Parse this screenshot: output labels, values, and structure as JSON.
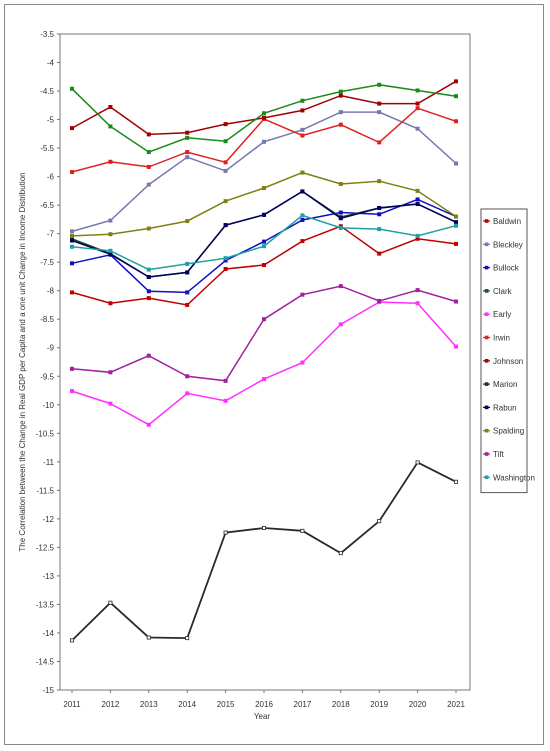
{
  "chart_data": {
    "type": "line",
    "title": "",
    "xlabel": "Year",
    "ylabel": "The Correlation between the Change in Real GDP per Capita and a one unit Change in Income Distribution",
    "ylim": [
      -15,
      -3.5
    ],
    "y_ticks": [
      -3.5,
      -4,
      -4.5,
      -5,
      -5.5,
      -6,
      -6.5,
      -7,
      -7.5,
      -8,
      -8.5,
      -9,
      -9.5,
      -10,
      -10.5,
      -11,
      -11.5,
      -12,
      -12.5,
      -13,
      -13.5,
      -14,
      -14.5,
      -15
    ],
    "y_tick_labels": [
      "-3.5",
      "-4",
      "-4.5",
      "-5",
      "-5.5",
      "-6",
      "-6.5",
      "-7",
      "-7.5",
      "-8",
      "-8.5",
      "-9",
      "-9.5",
      "-10",
      "-10.5",
      "-11",
      "-11.5",
      "-12",
      "-12.5",
      "-13",
      "-13.5",
      "-14",
      "-14.5",
      "-15"
    ],
    "x": [
      "2011",
      "2012",
      "2013",
      "2014",
      "2015",
      "2016",
      "2017",
      "2018",
      "2019",
      "2020",
      "2021"
    ],
    "grid": false,
    "legend_position": "right",
    "series": [
      {
        "name": "Baldwin",
        "color": "#c00000",
        "values": [
          -8.03,
          -8.22,
          -8.13,
          -8.25,
          -7.62,
          -7.55,
          -7.13,
          -6.87,
          -7.35,
          -7.09,
          -7.18
        ]
      },
      {
        "name": "Bleckley",
        "color": "#7878b0",
        "values": [
          -6.96,
          -6.77,
          -6.14,
          -5.66,
          -5.9,
          -5.39,
          -5.18,
          -4.87,
          -4.87,
          -5.16,
          -5.77
        ]
      },
      {
        "name": "Bullock",
        "color": "#1010c0",
        "values": [
          -7.52,
          -7.37,
          -8.01,
          -8.03,
          -7.47,
          -7.14,
          -6.76,
          -6.63,
          -6.66,
          -6.4,
          -6.7
        ]
      },
      {
        "name": "Clark",
        "color": "#205020",
        "values": [
          -7.09,
          -7.35,
          -7.76,
          -7.68,
          -6.85,
          -6.67,
          -6.26,
          -6.71,
          -6.55,
          -6.48,
          -6.8
        ]
      },
      {
        "name": "Early",
        "color": "#ff30ff",
        "values": [
          -9.76,
          -9.98,
          -10.35,
          -9.8,
          -9.93,
          -9.55,
          -9.26,
          -8.59,
          -8.2,
          -8.22,
          -8.98
        ]
      },
      {
        "name": "Irwin",
        "color": "#e02020",
        "values": [
          -5.92,
          -5.74,
          -5.83,
          -5.57,
          -5.75,
          -4.99,
          -5.28,
          -5.09,
          -5.4,
          -4.8,
          -5.03
        ]
      },
      {
        "name": "Johnson",
        "color": "#a00000",
        "values": [
          -5.15,
          -4.78,
          -5.26,
          -5.23,
          -5.08,
          -4.97,
          -4.84,
          -4.58,
          -4.72,
          -4.72,
          -4.33
        ]
      },
      {
        "name": "Marion",
        "color": "#2a2a2a",
        "values": [
          -14.13,
          -13.47,
          -14.08,
          -14.09,
          -12.24,
          -12.16,
          -12.21,
          -12.6,
          -12.04,
          -11.01,
          -11.35
        ]
      },
      {
        "name": "Rabun",
        "color": "#000060",
        "values": [
          -7.12,
          -7.36,
          -7.76,
          -7.68,
          -6.85,
          -6.67,
          -6.26,
          -6.73,
          -6.55,
          -6.48,
          -6.8
        ]
      },
      {
        "name": "Spalding",
        "color": "#808010",
        "values": [
          -7.04,
          -7.01,
          -6.91,
          -6.78,
          -6.43,
          -6.2,
          -5.93,
          -6.13,
          -6.08,
          -6.25,
          -6.7
        ]
      },
      {
        "name": "Tift",
        "color": "#a020a0",
        "values": [
          -9.37,
          -9.43,
          -9.14,
          -9.5,
          -9.58,
          -8.5,
          -8.07,
          -7.92,
          -8.18,
          -7.99,
          -8.19
        ]
      },
      {
        "name": "Washington",
        "color": "#20a0a0",
        "values": [
          -7.23,
          -7.3,
          -7.63,
          -7.53,
          -7.43,
          -7.22,
          -6.68,
          -6.9,
          -6.92,
          -7.04,
          -6.86
        ]
      },
      {
        "name": "",
        "color": "#1a8a1a",
        "values": [
          -4.46,
          -5.12,
          -5.57,
          -5.32,
          -5.38,
          -4.89,
          -4.67,
          -4.51,
          -4.39,
          -4.49,
          -4.59
        ]
      }
    ]
  }
}
